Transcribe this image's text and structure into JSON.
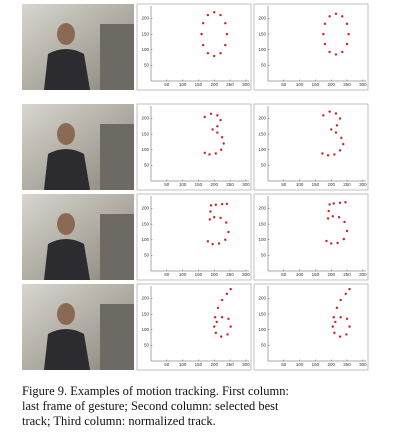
{
  "axes": {
    "xlim": [
      0,
      310
    ],
    "ylim": [
      0,
      240
    ],
    "xticks": [
      50,
      100,
      150,
      200,
      250,
      300
    ],
    "yticks": [
      50,
      100,
      150,
      200
    ]
  },
  "rows": [
    {
      "track": {
        "x": [
          240,
          235,
          220,
          200,
          180,
          165,
          160,
          165,
          180,
          200,
          220,
          235
        ],
        "y": [
          150,
          185,
          211,
          220,
          211,
          185,
          150,
          115,
          89,
          80,
          89,
          115
        ]
      },
      "normalized": {
        "x": [
          255,
          250,
          235,
          215,
          195,
          180,
          175,
          180,
          195,
          215,
          235,
          250
        ],
        "y": [
          150,
          183,
          207,
          215,
          207,
          183,
          150,
          118,
          93,
          85,
          93,
          118
        ]
      }
    },
    {
      "track": {
        "x": [
          170,
          190,
          210,
          220,
          210,
          195,
          210,
          225,
          230,
          222,
          205,
          185,
          170
        ],
        "y": [
          205,
          215,
          210,
          195,
          175,
          165,
          155,
          140,
          120,
          100,
          88,
          85,
          90
        ]
      },
      "normalized": {
        "x": [
          175,
          195,
          215,
          228,
          218,
          200,
          215,
          232,
          238,
          228,
          210,
          190,
          172
        ],
        "y": [
          210,
          222,
          216,
          200,
          178,
          165,
          155,
          138,
          118,
          98,
          85,
          82,
          88
        ]
      }
    },
    {
      "track": {
        "x": [
          240,
          225,
          205,
          190,
          188,
          186,
          200,
          220,
          238,
          245,
          235,
          215,
          195,
          180
        ],
        "y": [
          215,
          214,
          212,
          210,
          190,
          165,
          172,
          170,
          155,
          125,
          100,
          88,
          86,
          95
        ]
      },
      "normalized": {
        "x": [
          245,
          228,
          208,
          195,
          192,
          190,
          205,
          225,
          242,
          250,
          240,
          220,
          200,
          185
        ],
        "y": [
          220,
          218,
          216,
          213,
          192,
          168,
          175,
          172,
          157,
          128,
          102,
          90,
          88,
          96
        ]
      }
    },
    {
      "track": {
        "x": [
          252,
          240,
          225,
          212,
          203,
          200,
          205,
          222,
          242,
          252,
          245,
          225,
          208
        ],
        "y": [
          230,
          215,
          195,
          170,
          140,
          110,
          90,
          78,
          85,
          110,
          135,
          140,
          125
        ]
      },
      "normalized": {
        "x": [
          258,
          246,
          230,
          218,
          208,
          205,
          210,
          228,
          248,
          258,
          250,
          230,
          213
        ],
        "y": [
          230,
          215,
          195,
          170,
          140,
          110,
          90,
          78,
          85,
          110,
          135,
          140,
          125
        ]
      }
    }
  ],
  "caption": "Figure 9. Examples of motion tracking. First column: last frame of gesture; Second column: selected best track; Third column: normalized track."
}
